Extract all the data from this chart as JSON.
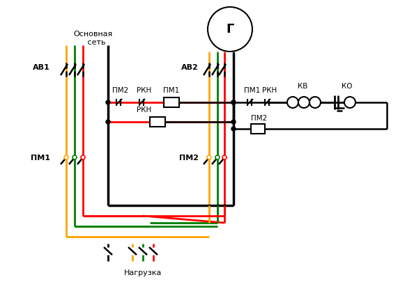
{
  "bg_color": "#ffffff",
  "wire_colors": {
    "orange": "#FFA500",
    "green": "#008000",
    "red": "#FF0000",
    "black": "#000000"
  },
  "labels": {
    "osnovnaya_set": "Основная\n   сеть",
    "av1": "АВ1",
    "av2": "АВ2",
    "pm1": "ПМ1",
    "pm2": "ПМ2",
    "rkh": "РКН",
    "kv": "КВ",
    "ko": "КО",
    "g": "Г",
    "nagruzka": "Нагрузка"
  },
  "figsize": [
    5.71,
    4.05
  ],
  "dpi": 100
}
